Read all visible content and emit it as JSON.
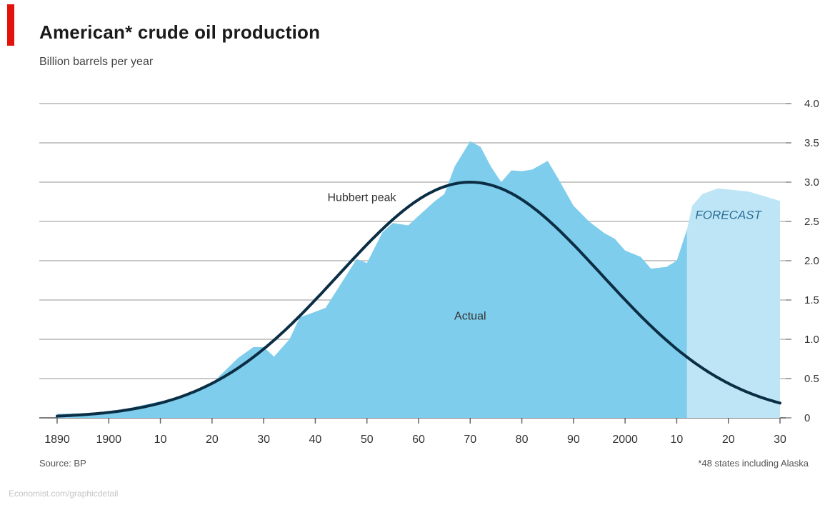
{
  "chart_data": {
    "type": "area",
    "title": "American* crude oil production",
    "subtitle": "Billion barrels per year",
    "source": "Source: BP",
    "footnote": "*48 states including Alaska",
    "url": "Economist.com/graphicdetail",
    "ylim": [
      0,
      4.0
    ],
    "xlim": [
      1890,
      2030
    ],
    "y_ticks": [
      {
        "value": 0,
        "label": "0"
      },
      {
        "value": 0.5,
        "label": "0.5"
      },
      {
        "value": 1.0,
        "label": "1.0"
      },
      {
        "value": 1.5,
        "label": "1.5"
      },
      {
        "value": 2.0,
        "label": "2.0"
      },
      {
        "value": 2.5,
        "label": "2.5"
      },
      {
        "value": 3.0,
        "label": "3.0"
      },
      {
        "value": 3.5,
        "label": "3.5"
      },
      {
        "value": 4.0,
        "label": "4.0"
      }
    ],
    "x_ticks": [
      {
        "value": 1890,
        "label": "1890"
      },
      {
        "value": 1900,
        "label": "1900"
      },
      {
        "value": 1910,
        "label": "10"
      },
      {
        "value": 1920,
        "label": "20"
      },
      {
        "value": 1930,
        "label": "30"
      },
      {
        "value": 1940,
        "label": "40"
      },
      {
        "value": 1950,
        "label": "50"
      },
      {
        "value": 1960,
        "label": "60"
      },
      {
        "value": 1970,
        "label": "70"
      },
      {
        "value": 1980,
        "label": "80"
      },
      {
        "value": 1990,
        "label": "90"
      },
      {
        "value": 2000,
        "label": "2000"
      },
      {
        "value": 2010,
        "label": "10"
      },
      {
        "value": 2020,
        "label": "20"
      },
      {
        "value": 2030,
        "label": "30"
      }
    ],
    "grid": true,
    "series": [
      {
        "name": "Actual",
        "kind": "area",
        "color": "#7fcdec",
        "points": [
          [
            1890,
            0.05
          ],
          [
            1895,
            0.06
          ],
          [
            1900,
            0.07
          ],
          [
            1905,
            0.14
          ],
          [
            1910,
            0.21
          ],
          [
            1915,
            0.28
          ],
          [
            1920,
            0.44
          ],
          [
            1925,
            0.76
          ],
          [
            1928,
            0.9
          ],
          [
            1930,
            0.9
          ],
          [
            1932,
            0.78
          ],
          [
            1935,
            1.0
          ],
          [
            1937,
            1.28
          ],
          [
            1940,
            1.35
          ],
          [
            1942,
            1.4
          ],
          [
            1945,
            1.71
          ],
          [
            1948,
            2.02
          ],
          [
            1950,
            1.97
          ],
          [
            1953,
            2.36
          ],
          [
            1955,
            2.48
          ],
          [
            1958,
            2.45
          ],
          [
            1960,
            2.57
          ],
          [
            1963,
            2.75
          ],
          [
            1965,
            2.85
          ],
          [
            1967,
            3.2
          ],
          [
            1970,
            3.52
          ],
          [
            1972,
            3.45
          ],
          [
            1974,
            3.2
          ],
          [
            1976,
            3.0
          ],
          [
            1978,
            3.15
          ],
          [
            1980,
            3.14
          ],
          [
            1982,
            3.16
          ],
          [
            1985,
            3.27
          ],
          [
            1987,
            3.05
          ],
          [
            1990,
            2.7
          ],
          [
            1993,
            2.5
          ],
          [
            1996,
            2.35
          ],
          [
            1998,
            2.28
          ],
          [
            2000,
            2.13
          ],
          [
            2003,
            2.05
          ],
          [
            2005,
            1.9
          ],
          [
            2008,
            1.92
          ],
          [
            2010,
            2.0
          ],
          [
            2012,
            2.4
          ]
        ]
      },
      {
        "name": "FORECAST",
        "kind": "area",
        "color": "#bde5f6",
        "points": [
          [
            2012,
            2.4
          ],
          [
            2013,
            2.7
          ],
          [
            2015,
            2.85
          ],
          [
            2018,
            2.92
          ],
          [
            2021,
            2.9
          ],
          [
            2024,
            2.88
          ],
          [
            2027,
            2.82
          ],
          [
            2030,
            2.76
          ]
        ]
      },
      {
        "name": "Hubbert peak",
        "kind": "line",
        "color": "#0b2e45",
        "peak_year": 1970,
        "peak_value": 3.0,
        "sigma_years": 25.5,
        "x_range": [
          1890,
          2030
        ]
      }
    ],
    "annotations": [
      {
        "text": "Hubbert peak",
        "x": 1949,
        "y": 2.76
      },
      {
        "text": "Actual",
        "x": 1970,
        "y": 1.25
      },
      {
        "text": "FORECAST",
        "x": 2020,
        "y": 2.53
      }
    ]
  },
  "colors": {
    "actual": "#7fcdec",
    "forecast": "#bde5f6",
    "hubbert": "#0b2e45",
    "grid": "#c9c9c9",
    "brand_red": "#e3120b"
  }
}
